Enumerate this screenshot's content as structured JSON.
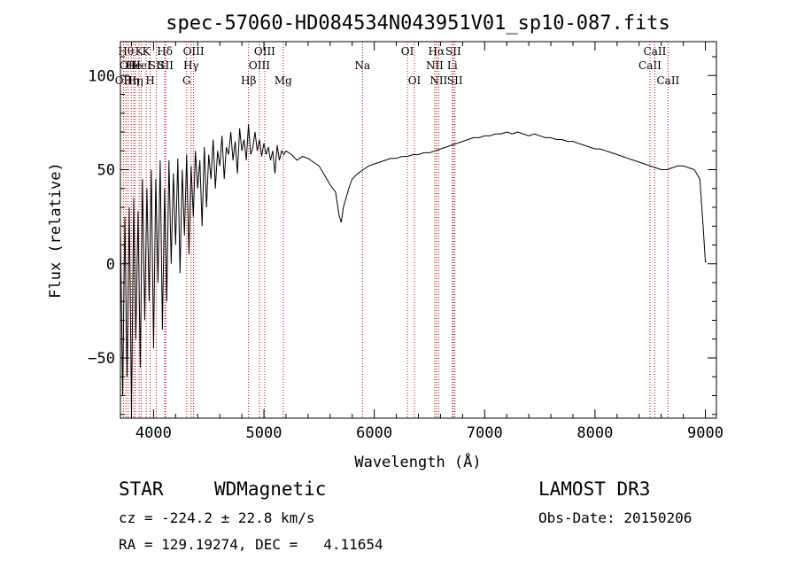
{
  "chart_data": {
    "type": "line",
    "title": "spec-57060-HD084534N043951V01_sp10-087.fits",
    "xlabel": "Wavelength (Å)",
    "ylabel": "Flux (relative)",
    "xlim": [
      3700,
      9100
    ],
    "ylim": [
      -82,
      118
    ],
    "xticks": [
      4000,
      5000,
      6000,
      7000,
      8000,
      9000
    ],
    "yticks": [
      -50,
      0,
      50,
      100
    ],
    "grid": false,
    "series": [
      {
        "values_note": "approximate traced continuum",
        "x": [
          3700,
          3720,
          3740,
          3760,
          3780,
          3800,
          3820,
          3840,
          3860,
          3880,
          3900,
          3920,
          3940,
          3960,
          3980,
          4000,
          4020,
          4040,
          4060,
          4080,
          4100,
          4120,
          4140,
          4160,
          4180,
          4200,
          4220,
          4240,
          4260,
          4280,
          4300,
          4320,
          4340,
          4360,
          4380,
          4400,
          4420,
          4440,
          4460,
          4480,
          4500,
          4520,
          4540,
          4560,
          4580,
          4600,
          4620,
          4640,
          4660,
          4680,
          4700,
          4720,
          4740,
          4760,
          4780,
          4800,
          4820,
          4840,
          4860,
          4880,
          4900,
          4920,
          4940,
          4960,
          4980,
          5000,
          5020,
          5040,
          5060,
          5080,
          5100,
          5120,
          5140,
          5160,
          5180,
          5200,
          5250,
          5300,
          5350,
          5400,
          5450,
          5500,
          5550,
          5600,
          5650,
          5680,
          5700,
          5720,
          5740,
          5760,
          5780,
          5800,
          5850,
          5900,
          5950,
          6000,
          6050,
          6100,
          6150,
          6200,
          6250,
          6300,
          6350,
          6400,
          6450,
          6500,
          6550,
          6600,
          6650,
          6700,
          6750,
          6800,
          6850,
          6900,
          6950,
          7000,
          7050,
          7100,
          7150,
          7200,
          7250,
          7300,
          7350,
          7400,
          7450,
          7500,
          7550,
          7600,
          7650,
          7700,
          7750,
          7800,
          7850,
          7900,
          7950,
          8000,
          8050,
          8100,
          8150,
          8200,
          8250,
          8300,
          8350,
          8400,
          8450,
          8500,
          8550,
          8600,
          8650,
          8700,
          8750,
          8800,
          8850,
          8900,
          8950,
          8980,
          9000,
          9010
        ],
        "y": [
          20,
          -70,
          25,
          -60,
          30,
          -80,
          35,
          -40,
          28,
          -55,
          45,
          -30,
          40,
          -20,
          50,
          -45,
          45,
          -10,
          55,
          -35,
          40,
          -20,
          55,
          0,
          48,
          10,
          56,
          -5,
          50,
          15,
          58,
          5,
          52,
          25,
          60,
          40,
          55,
          20,
          62,
          30,
          58,
          45,
          66,
          40,
          60,
          52,
          68,
          45,
          62,
          58,
          70,
          55,
          65,
          48,
          72,
          60,
          66,
          55,
          74,
          58,
          62,
          70,
          60,
          66,
          57,
          64,
          58,
          62,
          55,
          60,
          48,
          63,
          55,
          60,
          58,
          60,
          58,
          55,
          57,
          56,
          54,
          52,
          47,
          42,
          38,
          26,
          22,
          30,
          34,
          38,
          42,
          45,
          48,
          50,
          52,
          53,
          54,
          55,
          56,
          56,
          57,
          57,
          58,
          58,
          59,
          59,
          60,
          61,
          62,
          63,
          64,
          65,
          66,
          67,
          67,
          68,
          68,
          69,
          69,
          70,
          69,
          70,
          69,
          68,
          69,
          68,
          67,
          67,
          66,
          66,
          65,
          65,
          64,
          63,
          62,
          61,
          61,
          60,
          59,
          58,
          57,
          56,
          55,
          54,
          53,
          52,
          51,
          50,
          50,
          51,
          52,
          52,
          51,
          50,
          45,
          20,
          1,
          1
        ]
      }
    ],
    "lines": [
      {
        "wl": 3727,
        "row": 3,
        "label": "OII"
      },
      {
        "wl": 3750,
        "row": 1,
        "label": "Hθ"
      },
      {
        "wl": 3770,
        "row": 2,
        "label": "OII"
      },
      {
        "wl": 3798,
        "row": 3,
        "label": "Hη"
      },
      {
        "wl": 3820,
        "row": 2,
        "label": "He"
      },
      {
        "wl": 3835,
        "row": 3,
        "label": "Hη"
      },
      {
        "wl": 3869,
        "row": 1,
        "label": "K"
      },
      {
        "wl": 3889,
        "row": 2,
        "label": "HeI"
      },
      {
        "wl": 3934,
        "row": 1,
        "label": "K"
      },
      {
        "wl": 3970,
        "row": 3,
        "label": "H"
      },
      {
        "wl": 4026,
        "row": 2,
        "label": "SII"
      },
      {
        "wl": 4102,
        "row": 1,
        "label": "Hδ"
      },
      {
        "wl": 4110,
        "row": 2,
        "label": "SII"
      },
      {
        "wl": 4300,
        "row": 3,
        "label": "G"
      },
      {
        "wl": 4340,
        "row": 2,
        "label": "Hγ"
      },
      {
        "wl": 4363,
        "row": 1,
        "label": "OIII"
      },
      {
        "wl": 4861,
        "row": 3,
        "label": "Hβ"
      },
      {
        "wl": 4959,
        "row": 2,
        "label": "OIII"
      },
      {
        "wl": 5007,
        "row": 1,
        "label": "OIII"
      },
      {
        "wl": 5175,
        "row": 3,
        "label": "Mg"
      },
      {
        "wl": 5893,
        "row": 2,
        "label": "Na"
      },
      {
        "wl": 6300,
        "row": 1,
        "label": "OI"
      },
      {
        "wl": 6364,
        "row": 3,
        "label": "OI"
      },
      {
        "wl": 6548,
        "row": 2,
        "label": "NII"
      },
      {
        "wl": 6563,
        "row": 1,
        "label": "Hα"
      },
      {
        "wl": 6583,
        "row": 3,
        "label": "NII"
      },
      {
        "wl": 6707,
        "row": 2,
        "label": "Li"
      },
      {
        "wl": 6716,
        "row": 1,
        "label": "SII"
      },
      {
        "wl": 6731,
        "row": 3,
        "label": "SII"
      },
      {
        "wl": 8498,
        "row": 2,
        "label": "CaII"
      },
      {
        "wl": 8542,
        "row": 1,
        "label": "CaII"
      },
      {
        "wl": 8662,
        "row": 3,
        "label": "CaII"
      }
    ]
  },
  "info": {
    "object_type": "STAR",
    "subclass": "WDMagnetic",
    "survey": "LAMOST DR3",
    "cz": "cz = -224.2 ± 22.8 km/s",
    "obs_date": "Obs-Date: 20150206",
    "radec": "RA = 129.19274, DEC =   4.11654"
  }
}
